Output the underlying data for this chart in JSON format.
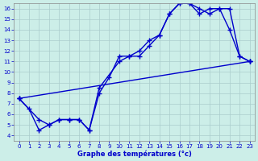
{
  "title": "Graphe des températures (°c)",
  "bg_color": "#cceee8",
  "line_color": "#0000cc",
  "xlim": [
    -0.5,
    23.5
  ],
  "ylim": [
    3.5,
    16.5
  ],
  "xticks": [
    0,
    1,
    2,
    3,
    4,
    5,
    6,
    7,
    8,
    9,
    10,
    11,
    12,
    13,
    14,
    15,
    16,
    17,
    18,
    19,
    20,
    21,
    22,
    23
  ],
  "yticks": [
    4,
    5,
    6,
    7,
    8,
    9,
    10,
    11,
    12,
    13,
    14,
    15,
    16
  ],
  "line1_x": [
    0,
    1,
    2,
    3,
    4,
    5,
    6,
    7,
    8,
    9,
    10,
    11,
    12,
    13,
    14,
    15,
    16,
    17,
    18,
    19,
    20,
    21,
    22,
    23
  ],
  "line1_y": [
    7.5,
    6.5,
    4.5,
    5.0,
    5.5,
    5.5,
    5.5,
    4.5,
    8.0,
    9.5,
    11.5,
    11.5,
    12.0,
    13.0,
    13.5,
    15.5,
    16.5,
    16.5,
    15.5,
    16.0,
    16.0,
    14.0,
    11.5,
    11.0
  ],
  "line2_x": [
    0,
    2,
    3,
    4,
    5,
    6,
    7,
    8,
    10,
    11,
    12,
    13,
    14,
    15,
    16,
    17,
    18,
    19,
    20,
    21,
    22,
    23
  ],
  "line2_y": [
    7.5,
    5.5,
    5.0,
    5.5,
    5.5,
    5.5,
    4.5,
    8.5,
    11.0,
    11.5,
    11.5,
    12.5,
    13.5,
    15.5,
    16.5,
    16.5,
    16.0,
    15.5,
    16.0,
    16.0,
    11.5,
    11.0
  ],
  "line3_x": [
    0,
    23
  ],
  "line3_y": [
    7.5,
    11.0
  ],
  "grid_color": "#aacccc",
  "marker": "+",
  "markersize": 5,
  "linewidth": 1.0
}
